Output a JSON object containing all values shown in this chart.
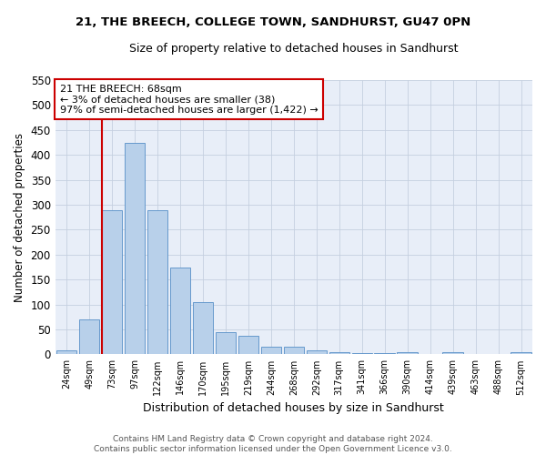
{
  "title1": "21, THE BREECH, COLLEGE TOWN, SANDHURST, GU47 0PN",
  "title2": "Size of property relative to detached houses in Sandhurst",
  "xlabel": "Distribution of detached houses by size in Sandhurst",
  "ylabel": "Number of detached properties",
  "footer1": "Contains HM Land Registry data © Crown copyright and database right 2024.",
  "footer2": "Contains public sector information licensed under the Open Government Licence v3.0.",
  "categories": [
    "24sqm",
    "49sqm",
    "73sqm",
    "97sqm",
    "122sqm",
    "146sqm",
    "170sqm",
    "195sqm",
    "219sqm",
    "244sqm",
    "268sqm",
    "292sqm",
    "317sqm",
    "341sqm",
    "366sqm",
    "390sqm",
    "414sqm",
    "439sqm",
    "463sqm",
    "488sqm",
    "512sqm"
  ],
  "values": [
    8,
    70,
    290,
    425,
    290,
    175,
    105,
    45,
    38,
    15,
    15,
    8,
    5,
    3,
    2,
    5,
    0,
    5,
    0,
    0,
    5
  ],
  "bar_color": "#b8d0ea",
  "bar_edge_color": "#6699cc",
  "grid_color": "#c5cfe0",
  "background_color": "#e8eef8",
  "vline_color": "#cc0000",
  "annotation_line1": "21 THE BREECH: 68sqm",
  "annotation_line2": "← 3% of detached houses are smaller (38)",
  "annotation_line3": "97% of semi-detached houses are larger (1,422) →",
  "annotation_box_color": "#cc0000",
  "ylim": [
    0,
    550
  ],
  "yticks": [
    0,
    50,
    100,
    150,
    200,
    250,
    300,
    350,
    400,
    450,
    500,
    550
  ]
}
